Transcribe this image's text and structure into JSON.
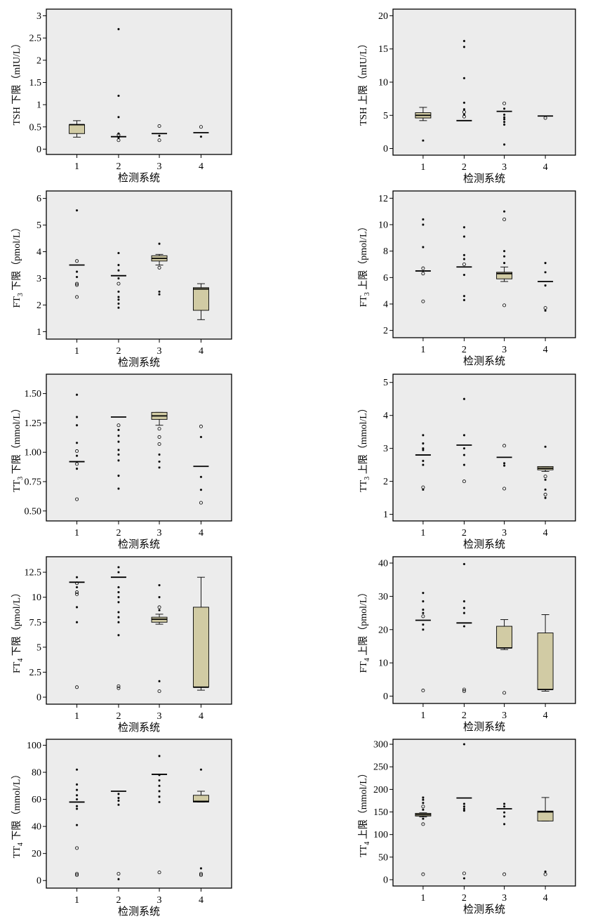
{
  "style": {
    "panel_bg": "#ececec",
    "box_fill": "#d1cba4",
    "stroke": "#000000"
  },
  "chart_data": [
    {
      "type": "boxplot",
      "ylabel_main": "TSH 下限",
      "ylabel_unit": "mIU/L",
      "xlabel": "检测系统",
      "categories": [
        "1",
        "2",
        "3",
        "4"
      ],
      "ylim": [
        -0.12,
        3.15
      ],
      "yticks": [
        0,
        0.5,
        1,
        1.5,
        2,
        2.5,
        3
      ],
      "ytick_labels": [
        "0",
        "0.5",
        "1",
        "1.5",
        "2",
        "2.5",
        "3"
      ],
      "boxes": [
        {
          "q1": 0.35,
          "median": 0.55,
          "q3": 0.55,
          "whisker_low": 0.27,
          "whisker_high": 0.64,
          "outliers": [],
          "extremes": []
        },
        {
          "median": 0.28,
          "outliers": [
            0.32,
            0.2
          ],
          "extremes": [
            2.7,
            1.2,
            0.72,
            0.35,
            0.25
          ]
        },
        {
          "median": 0.35,
          "outliers": [
            0.52,
            0.2
          ],
          "extremes": [
            0.3
          ]
        },
        {
          "median": 0.37,
          "outliers": [
            0.5
          ],
          "extremes": [
            0.28
          ]
        }
      ]
    },
    {
      "type": "boxplot",
      "ylabel_main": "TSH 上限",
      "ylabel_unit": "mIU/L",
      "xlabel": "检测系统",
      "categories": [
        "1",
        "2",
        "3",
        "4"
      ],
      "ylim": [
        -1,
        21
      ],
      "yticks": [
        0,
        5,
        10,
        15,
        20
      ],
      "ytick_labels": [
        "0",
        "5",
        "10",
        "15",
        "20"
      ],
      "boxes": [
        {
          "q1": 4.6,
          "median": 5.0,
          "q3": 5.4,
          "whisker_low": 4.2,
          "whisker_high": 6.2,
          "outliers": [],
          "extremes": [
            1.2
          ]
        },
        {
          "median": 4.2,
          "outliers": [
            5.5,
            4.8
          ],
          "extremes": [
            16.2,
            15.3,
            10.6,
            6.9,
            5.9,
            5.1
          ]
        },
        {
          "median": 5.6,
          "outliers": [
            6.8
          ],
          "extremes": [
            6.0,
            5.1,
            4.7,
            4.4,
            4.0,
            3.6,
            0.6
          ]
        },
        {
          "median": 4.9,
          "outliers": [
            4.6
          ],
          "extremes": []
        }
      ]
    },
    {
      "type": "boxplot",
      "ylabel_main": "FT3 下限",
      "ylabel_sub": "3",
      "ylabel_prefix": "FT",
      "ylabel_suffix": " 下限",
      "ylabel_unit": "pmol/L",
      "xlabel": "检测系统",
      "categories": [
        "1",
        "2",
        "3",
        "4"
      ],
      "ylim": [
        0.72,
        6.28
      ],
      "yticks": [
        1,
        2,
        3,
        4,
        5,
        6
      ],
      "ytick_labels": [
        "1",
        "2",
        "3",
        "4",
        "5",
        "6"
      ],
      "boxes": [
        {
          "median": 3.5,
          "outliers": [
            3.65,
            2.8,
            2.75,
            2.3
          ],
          "extremes": [
            5.55,
            3.25,
            3.05
          ]
        },
        {
          "median": 3.1,
          "outliers": [
            2.8
          ],
          "extremes": [
            3.95,
            3.5,
            3.3,
            3.0,
            2.5,
            2.3,
            2.2,
            2.05,
            1.9
          ]
        },
        {
          "q1": 3.65,
          "median": 3.75,
          "q3": 3.85,
          "whisker_low": 3.5,
          "whisker_high": 3.9,
          "outliers": [
            3.4
          ],
          "extremes": [
            4.3,
            2.5,
            2.4
          ]
        },
        {
          "q1": 1.8,
          "median": 2.6,
          "q3": 2.65,
          "whisker_low": 1.45,
          "whisker_high": 2.8,
          "outliers": [],
          "extremes": []
        }
      ]
    },
    {
      "type": "boxplot",
      "ylabel_main": "FT3 上限",
      "ylabel_sub": "3",
      "ylabel_prefix": "FT",
      "ylabel_suffix": " 上限",
      "ylabel_unit": "pmol/L",
      "xlabel": "检测系统",
      "categories": [
        "1",
        "2",
        "3",
        "4"
      ],
      "ylim": [
        1.45,
        12.55
      ],
      "yticks": [
        2,
        4,
        6,
        8,
        10,
        12
      ],
      "ytick_labels": [
        "2",
        "4",
        "6",
        "8",
        "10",
        "12"
      ],
      "boxes": [
        {
          "median": 6.5,
          "outliers": [
            6.7,
            6.3,
            4.2
          ],
          "extremes": [
            10.4,
            10.0,
            8.3
          ]
        },
        {
          "median": 6.8,
          "outliers": [
            7.0
          ],
          "extremes": [
            9.8,
            9.1,
            7.7,
            7.4,
            6.2,
            4.6,
            4.3
          ]
        },
        {
          "q1": 5.9,
          "median": 6.3,
          "q3": 6.4,
          "whisker_low": 5.7,
          "whisker_high": 6.8,
          "outliers": [
            10.4,
            3.9
          ],
          "extremes": [
            11.0,
            8.0,
            7.6,
            7.1
          ]
        },
        {
          "median": 5.7,
          "outliers": [
            3.7
          ],
          "extremes": [
            7.1,
            6.4,
            5.4,
            3.5
          ]
        }
      ]
    },
    {
      "type": "boxplot",
      "ylabel_main": "TT3 下限",
      "ylabel_sub": "3",
      "ylabel_prefix": "TT",
      "ylabel_suffix": " 下限",
      "ylabel_unit": "mmol/L",
      "xlabel": "检测系统",
      "categories": [
        "1",
        "2",
        "3",
        "4"
      ],
      "ylim": [
        0.415,
        1.665
      ],
      "yticks": [
        0.5,
        0.75,
        1.0,
        1.25,
        1.5
      ],
      "ytick_labels": [
        "0.50",
        "0.75",
        "1.00",
        "1.25",
        "1.50"
      ],
      "boxes": [
        {
          "median": 0.92,
          "outliers": [
            1.01,
            0.9,
            0.6
          ],
          "extremes": [
            1.49,
            1.3,
            1.23,
            1.08,
            0.97,
            0.86
          ]
        },
        {
          "median": 1.3,
          "outliers": [
            1.23
          ],
          "extremes": [
            1.19,
            1.14,
            1.09,
            1.02,
            0.98,
            0.93,
            0.8,
            0.69
          ]
        },
        {
          "q1": 1.28,
          "median": 1.31,
          "q3": 1.34,
          "whisker_low": 1.23,
          "whisker_high": 1.34,
          "outliers": [
            1.2,
            1.13,
            1.07
          ],
          "extremes": [
            0.98,
            0.92,
            0.87
          ]
        },
        {
          "median": 0.88,
          "outliers": [
            1.22,
            0.57
          ],
          "extremes": [
            1.13,
            0.79,
            0.68
          ]
        }
      ]
    },
    {
      "type": "boxplot",
      "ylabel_main": "TT3 上限",
      "ylabel_sub": "3",
      "ylabel_prefix": "TT",
      "ylabel_suffix": " 上限",
      "ylabel_unit": "mmol/L",
      "xlabel": "检测系统",
      "categories": [
        "1",
        "2",
        "3",
        "4"
      ],
      "ylim": [
        0.8,
        5.25
      ],
      "yticks": [
        1,
        2,
        3,
        4,
        5
      ],
      "ytick_labels": [
        "1",
        "2",
        "3",
        "4",
        "5"
      ],
      "boxes": [
        {
          "median": 2.8,
          "outliers": [
            1.82
          ],
          "extremes": [
            3.4,
            3.15,
            3.0,
            2.95,
            2.62,
            2.5,
            1.75
          ]
        },
        {
          "median": 3.1,
          "outliers": [
            2.0
          ],
          "extremes": [
            4.5,
            3.4,
            3.0,
            2.8,
            2.5
          ]
        },
        {
          "median": 2.73,
          "outliers": [
            3.08,
            1.78
          ],
          "extremes": [
            2.55,
            2.48
          ]
        },
        {
          "q1": 2.35,
          "median": 2.4,
          "q3": 2.45,
          "whisker_low": 2.3,
          "whisker_high": 2.45,
          "outliers": [
            2.15,
            1.6
          ],
          "extremes": [
            3.05,
            2.05,
            1.75,
            1.5
          ]
        }
      ]
    },
    {
      "type": "boxplot",
      "ylabel_main": "FT4 下限",
      "ylabel_sub": "4",
      "ylabel_prefix": "FT",
      "ylabel_suffix": " 下限",
      "ylabel_unit": "pmol/L",
      "xlabel": "检测系统",
      "categories": [
        "1",
        "2",
        "3",
        "4"
      ],
      "ylim": [
        -0.7,
        14.05
      ],
      "yticks": [
        0,
        2.5,
        5,
        7.5,
        10,
        12.5
      ],
      "ytick_labels": [
        "0",
        "2.5",
        "5",
        "7.5",
        "10",
        "12.5"
      ],
      "boxes": [
        {
          "median": 11.5,
          "outliers": [
            11.4,
            10.5,
            10.3,
            1.0
          ],
          "extremes": [
            12.0,
            11.0,
            9.0,
            7.5
          ]
        },
        {
          "median": 12.0,
          "outliers": [
            1.1,
            0.9
          ],
          "extremes": [
            13.0,
            12.5,
            11.0,
            10.5,
            10.0,
            9.5,
            8.5,
            8.0,
            7.5,
            6.2
          ]
        },
        {
          "q1": 7.5,
          "median": 7.8,
          "q3": 8.0,
          "whisker_low": 7.3,
          "whisker_high": 8.3,
          "outliers": [
            9.0,
            0.6
          ],
          "extremes": [
            11.2,
            10.0,
            8.7,
            1.6
          ]
        },
        {
          "q1": 1.0,
          "median": 1.0,
          "q3": 9.0,
          "whisker_low": 0.7,
          "whisker_high": 12.0,
          "outliers": [],
          "extremes": []
        }
      ]
    },
    {
      "type": "boxplot",
      "ylabel_main": "FT4 上限",
      "ylabel_sub": "4",
      "ylabel_prefix": "FT",
      "ylabel_suffix": " 上限",
      "ylabel_unit": "pmol/L",
      "xlabel": "检测系统",
      "categories": [
        "1",
        "2",
        "3",
        "4"
      ],
      "ylim": [
        -2.2,
        41.9
      ],
      "yticks": [
        0,
        10,
        20,
        30,
        40
      ],
      "ytick_labels": [
        "0",
        "10",
        "20",
        "30",
        "40"
      ],
      "boxes": [
        {
          "median": 22.8,
          "outliers": [
            24.0,
            1.7
          ],
          "extremes": [
            31.0,
            28.5,
            26.0,
            25.0,
            21.5,
            20.0
          ]
        },
        {
          "median": 22.0,
          "outliers": [
            2.0,
            1.5
          ],
          "extremes": [
            39.7,
            28.5,
            26.5,
            25.0,
            21.0
          ]
        },
        {
          "q1": 14.5,
          "median": 14.5,
          "q3": 21.0,
          "whisker_low": 14.0,
          "whisker_high": 23.0,
          "outliers": [
            1.0
          ],
          "extremes": []
        },
        {
          "q1": 2.0,
          "median": 2.0,
          "q3": 19.0,
          "whisker_low": 1.5,
          "whisker_high": 24.5,
          "outliers": [],
          "extremes": []
        }
      ]
    },
    {
      "type": "boxplot",
      "ylabel_main": "TT4 下限",
      "ylabel_sub": "4",
      "ylabel_prefix": "TT",
      "ylabel_suffix": " 下限",
      "ylabel_unit": "mmol/L",
      "xlabel": "检测系统",
      "categories": [
        "1",
        "2",
        "3",
        "4"
      ],
      "ylim": [
        -5.6,
        104.4
      ],
      "yticks": [
        0,
        20,
        40,
        60,
        80,
        100
      ],
      "ytick_labels": [
        "0",
        "20",
        "40",
        "60",
        "80",
        "100"
      ],
      "boxes": [
        {
          "median": 58,
          "outliers": [
            5,
            4,
            24
          ],
          "extremes": [
            82,
            71,
            67,
            63,
            60,
            55,
            53,
            41
          ]
        },
        {
          "median": 66,
          "outliers": [
            5
          ],
          "extremes": [
            64,
            61,
            59,
            56,
            1
          ]
        },
        {
          "median": 78.5,
          "outliers": [
            6
          ],
          "extremes": [
            92,
            78,
            74,
            70,
            66,
            62,
            58
          ]
        },
        {
          "q1": 58,
          "median": 58.5,
          "q3": 63,
          "whisker_low": 58,
          "whisker_high": 66,
          "outliers": [
            5,
            4
          ],
          "extremes": [
            82,
            9
          ]
        }
      ]
    },
    {
      "type": "boxplot",
      "ylabel_main": "TT4 上限",
      "ylabel_sub": "4",
      "ylabel_prefix": "TT",
      "ylabel_suffix": " 上限",
      "ylabel_unit": "mmol/L",
      "xlabel": "检测系统",
      "categories": [
        "1",
        "2",
        "3",
        "4"
      ],
      "ylim": [
        -14,
        311
      ],
      "yticks": [
        0,
        50,
        100,
        150,
        200,
        250,
        300
      ],
      "ytick_labels": [
        "0",
        "50",
        "100",
        "150",
        "200",
        "250",
        "300"
      ],
      "boxes": [
        {
          "q1": 141,
          "median": 144,
          "q3": 147,
          "whisker_low": 139,
          "whisker_high": 148,
          "outliers": [
            162,
            123,
            12
          ],
          "extremes": [
            182,
            177,
            170,
            155,
            135
          ]
        },
        {
          "median": 181,
          "outliers": [
            14
          ],
          "extremes": [
            300,
            168,
            162,
            157,
            153,
            3
          ]
        },
        {
          "median": 157,
          "outliers": [
            12
          ],
          "extremes": [
            168,
            162,
            149,
            140,
            123
          ]
        },
        {
          "q1": 130,
          "median": 150,
          "q3": 152,
          "whisker_low": 130,
          "whisker_high": 182,
          "outliers": [
            12
          ],
          "extremes": [
            18
          ]
        }
      ]
    }
  ]
}
